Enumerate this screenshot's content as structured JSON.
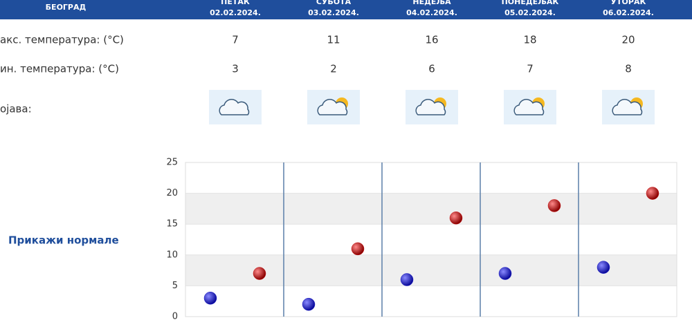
{
  "header": {
    "city": "БЕОГРАД",
    "days": [
      {
        "name": "ПЕТАК",
        "date": "02.02.2024."
      },
      {
        "name": "СУБОТА",
        "date": "03.02.2024."
      },
      {
        "name": "НЕДЕЉА",
        "date": "04.02.2024."
      },
      {
        "name": "ПОНЕДЕЉАК",
        "date": "05.02.2024."
      },
      {
        "name": "УТОРАК",
        "date": "06.02.2024."
      }
    ]
  },
  "table": {
    "rows": [
      "акс. температура: (°C)",
      "ин. температура: (°C)",
      "ојава:"
    ]
  },
  "link": "Прикажи нормале",
  "chart_data": {
    "type": "scatter",
    "ylim": [
      0,
      25
    ],
    "yticks": [
      0,
      5,
      10,
      15,
      20,
      25
    ],
    "grid": true,
    "series": [
      {
        "color": "#1c1cc8",
        "values": [
          3,
          2,
          6,
          7,
          8
        ]
      },
      {
        "color": "#cc1010",
        "values": [
          7,
          11,
          16,
          18,
          20
        ]
      }
    ]
  }
}
